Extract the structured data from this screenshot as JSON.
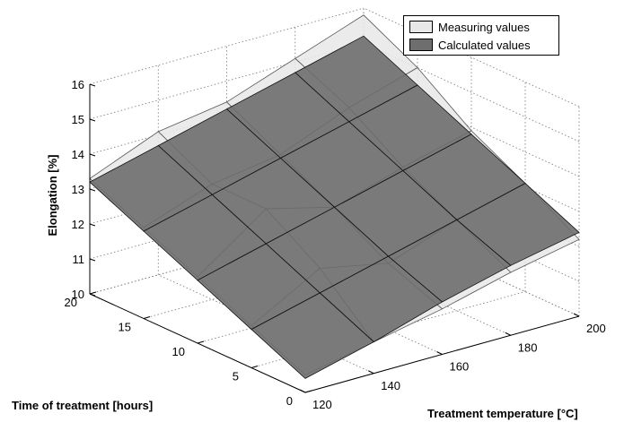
{
  "chart_data": {
    "type": "surface",
    "xlabel": "Treatment temperature [°C]",
    "ylabel": "Time of treatment [hours]",
    "zlabel": "Elongation [%]",
    "xticks": [
      120,
      140,
      160,
      180,
      200
    ],
    "yticks": [
      0,
      5,
      10,
      15,
      20
    ],
    "zticks": [
      10,
      11,
      12,
      13,
      14,
      15,
      16
    ],
    "xlim": [
      120,
      200
    ],
    "ylim": [
      0,
      20
    ],
    "zlim": [
      10,
      16
    ],
    "grid": true,
    "legend_position": "top-right",
    "series": [
      {
        "name": "Measuring values",
        "color": "#e8e8e8",
        "x": [
          120,
          140,
          160,
          180,
          200
        ],
        "y": [
          0,
          5,
          10,
          15,
          20
        ],
        "z": [
          [
            10.5,
            10.9,
            11.3,
            11.8,
            12.2
          ],
          [
            11.2,
            12.3,
            11.9,
            12.6,
            13.1
          ],
          [
            11.9,
            13.3,
            12.8,
            13.4,
            13.9
          ],
          [
            12.6,
            13.3,
            13.6,
            14.4,
            15.0
          ],
          [
            13.3,
            14.1,
            14.4,
            15.1,
            15.8
          ]
        ]
      },
      {
        "name": "Calculated values",
        "color": "#6e6e6e",
        "x": [
          120,
          140,
          160,
          180,
          200
        ],
        "y": [
          0,
          5,
          10,
          15,
          20
        ],
        "z": [
          [
            10.4,
            10.9,
            11.5,
            12.0,
            12.4
          ],
          [
            11.1,
            11.6,
            12.1,
            12.6,
            13.1
          ],
          [
            11.8,
            12.3,
            12.8,
            13.3,
            13.8
          ],
          [
            12.5,
            13.0,
            13.5,
            14.0,
            14.5
          ],
          [
            13.2,
            13.7,
            14.2,
            14.7,
            15.2
          ]
        ]
      }
    ]
  }
}
